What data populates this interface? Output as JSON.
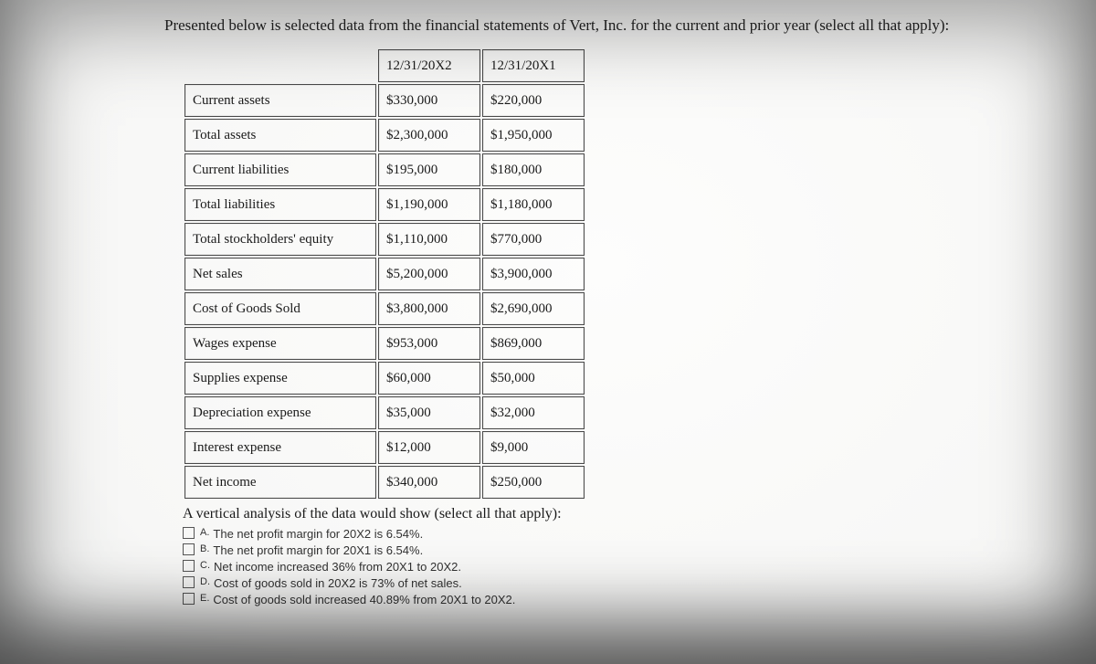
{
  "prompt": "Presented below is selected data from the financial statements of Vert, Inc. for the current and prior year (select all that apply):",
  "table": {
    "headers": [
      "",
      "12/31/20X2",
      "12/31/20X1"
    ],
    "rows": [
      {
        "label": "Current assets",
        "x2": "$330,000",
        "x1": "$220,000"
      },
      {
        "label": "Total assets",
        "x2": "$2,300,000",
        "x1": "$1,950,000"
      },
      {
        "label": "Current liabilities",
        "x2": "$195,000",
        "x1": "$180,000"
      },
      {
        "label": "Total liabilities",
        "x2": "$1,190,000",
        "x1": "$1,180,000"
      },
      {
        "label": "Total stockholders' equity",
        "x2": "$1,110,000",
        "x1": "$770,000"
      },
      {
        "label": "Net sales",
        "x2": "$5,200,000",
        "x1": "$3,900,000"
      },
      {
        "label": "Cost of Goods Sold",
        "x2": "$3,800,000",
        "x1": "$2,690,000"
      },
      {
        "label": "Wages expense",
        "x2": "$953,000",
        "x1": "$869,000"
      },
      {
        "label": "Supplies expense",
        "x2": "$60,000",
        "x1": "$50,000"
      },
      {
        "label": "Depreciation expense",
        "x2": "$35,000",
        "x1": "$32,000"
      },
      {
        "label": "Interest expense",
        "x2": "$12,000",
        "x1": "$9,000"
      },
      {
        "label": "Net income",
        "x2": "$340,000",
        "x1": "$250,000"
      }
    ]
  },
  "analysis_lead": "A vertical analysis of the data would show (select all that apply):",
  "options": [
    {
      "letter": "A.",
      "text": "The net profit margin for 20X2 is 6.54%."
    },
    {
      "letter": "B.",
      "text": "The net profit margin for 20X1 is 6.54%."
    },
    {
      "letter": "C.",
      "text": "Net income increased 36% from 20X1 to 20X2."
    },
    {
      "letter": "D.",
      "text": "Cost of goods sold in 20X2 is 73% of net sales."
    },
    {
      "letter": "E.",
      "text": "Cost of goods sold increased 40.89% from 20X1 to 20X2."
    }
  ]
}
